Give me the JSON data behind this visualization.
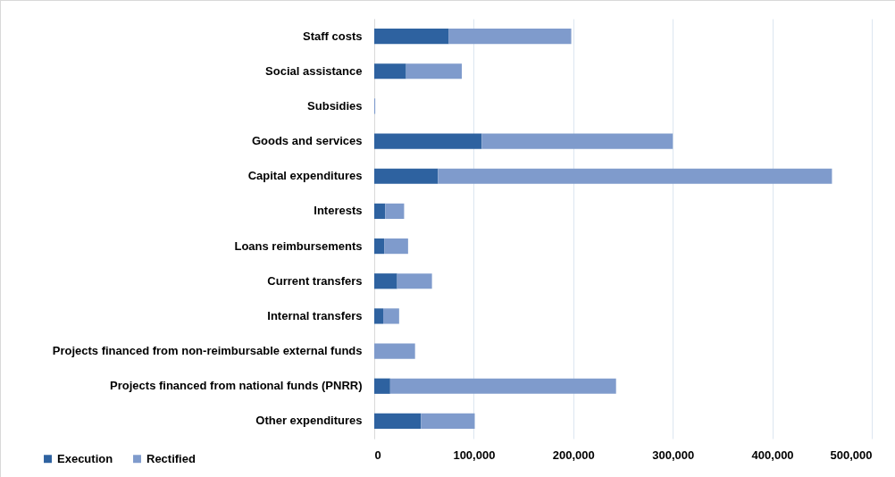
{
  "chart_data": {
    "type": "bar",
    "orientation": "horizontal",
    "stacked": true,
    "categories": [
      "Staff costs",
      "Social assistance",
      "Subsidies",
      "Goods and services",
      "Capital expenditures",
      "Interests",
      "Loans reimbursements",
      "Current transfers",
      "Internal transfers",
      "Projects financed from non-reimbursable external funds",
      "Projects financed from national funds (PNRR)",
      "Other expenditures"
    ],
    "series": [
      {
        "name": "Execution",
        "color": "#2e62a0",
        "values": [
          75000,
          32000,
          0,
          108000,
          64000,
          11000,
          10000,
          23000,
          9000,
          0,
          16000,
          47000
        ]
      },
      {
        "name": "Rectified",
        "color": "#7f9bcc",
        "values": [
          123000,
          56000,
          1000,
          192000,
          396000,
          19000,
          24000,
          35000,
          16000,
          41000,
          227000,
          54000
        ]
      }
    ],
    "xlim": [
      0,
      500000
    ],
    "xticks": [
      0,
      {
        "value": 100000,
        "label": "100,000"
      },
      {
        "value": 200000,
        "label": "200,000"
      },
      {
        "value": 300000,
        "label": "300,000"
      },
      {
        "value": 400000,
        "label": "400,000"
      },
      {
        "value": 500000,
        "label": "500,000"
      }
    ],
    "grid": "x",
    "legend": "bottom left"
  }
}
